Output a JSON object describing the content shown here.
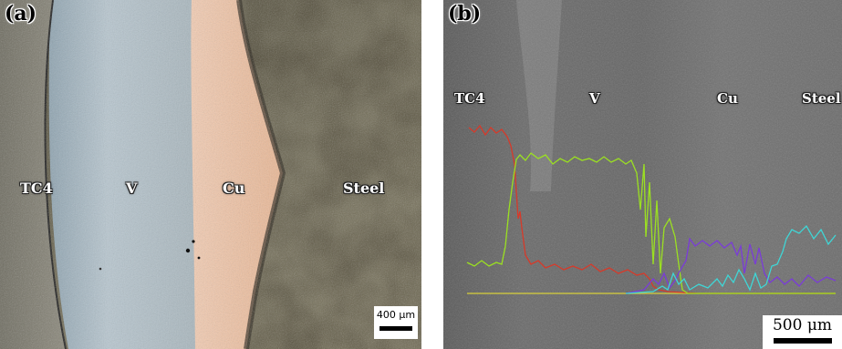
{
  "panel_a": {
    "letter": "(a)",
    "zones": {
      "tc4": "TC4",
      "v": "V",
      "cu": "Cu",
      "steel": "Steel"
    },
    "scale_bar": "400 μm"
  },
  "panel_b": {
    "letter": "(b)",
    "zones": {
      "tc4": "TC4",
      "v": "V",
      "cu": "Cu",
      "steel": "Steel"
    },
    "scale_bar": "500 μm"
  },
  "colors": {
    "line_red": "#d63a2a",
    "line_green": "#9be021",
    "line_purple": "#7a3cd8",
    "line_cyan": "#3fd6d6",
    "line_yellow": "#d8d03a"
  }
}
